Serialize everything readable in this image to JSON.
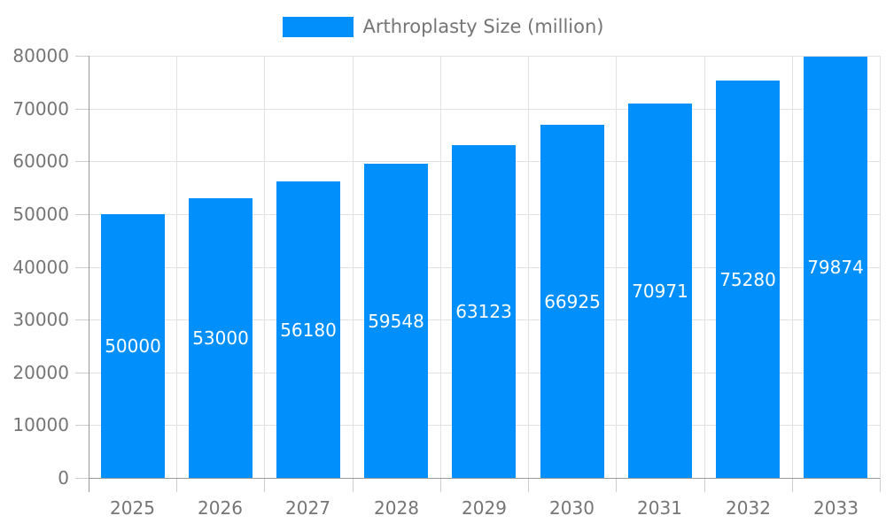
{
  "legend": {
    "label": "Arthroplasty Size (million)"
  },
  "chart_data": {
    "type": "bar",
    "title": "",
    "legend": "Arthroplasty Size (million)",
    "legend_position": "top",
    "categories": [
      "2025",
      "2026",
      "2027",
      "2028",
      "2029",
      "2030",
      "2031",
      "2032",
      "2033"
    ],
    "series": [
      {
        "name": "Arthroplasty Size (million)",
        "values": [
          50000,
          53000,
          56180,
          59548,
          63123,
          66925,
          70971,
          75280,
          79874
        ]
      }
    ],
    "bar_value_labels": [
      "50000",
      "53000",
      "56180",
      "59548",
      "63123",
      "66925",
      "70971",
      "75280",
      "79874"
    ],
    "xlabel": "",
    "ylabel": "",
    "ylim": [
      0,
      80000
    ],
    "ytick_step": 10000,
    "ytick_labels": [
      "0",
      "10000",
      "20000",
      "30000",
      "40000",
      "50000",
      "60000",
      "70000",
      "80000"
    ],
    "grid": true,
    "value_labels_position": "center-inside-bar",
    "colors": {
      "bar": "#008FFB",
      "value_label": "#FFFFFF",
      "axis_text": "#757575",
      "grid_line": "#E2E2E2",
      "axis_line": "#999999",
      "tick_line": "#CCCCCC",
      "background": "#FFFFFF"
    }
  }
}
